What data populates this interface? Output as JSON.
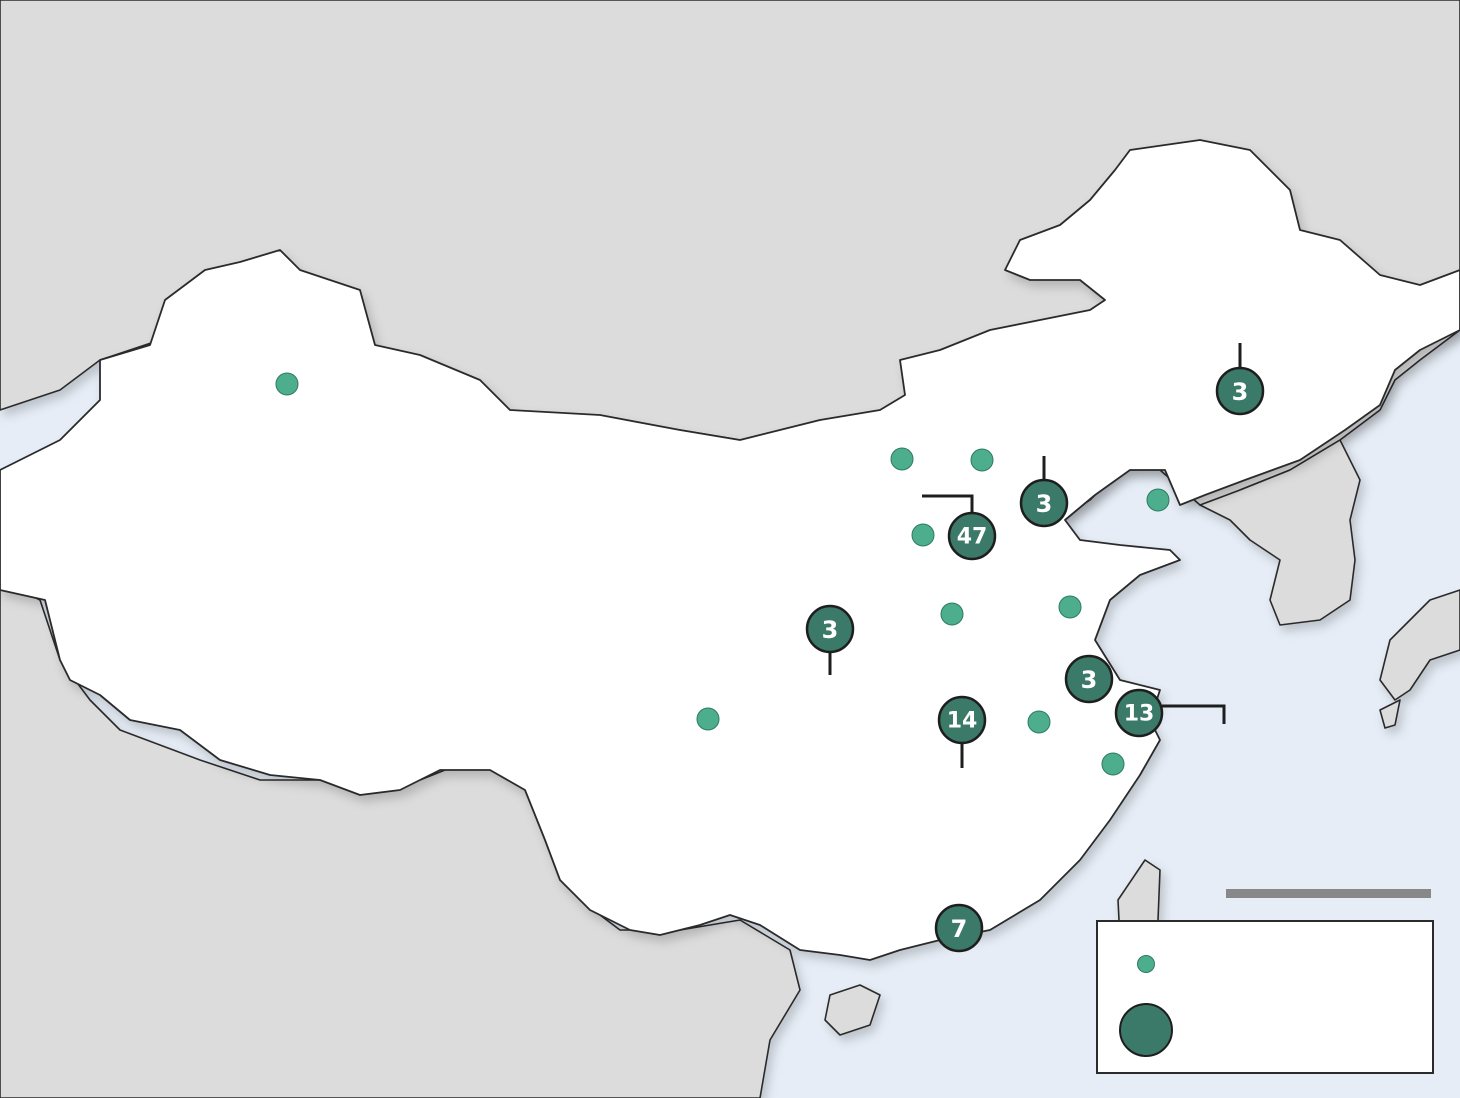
{
  "colors": {
    "water": "#e6edf6",
    "land_neighbors": "#dcdcdc",
    "land_focus": "#ffffff",
    "border": "#2b2b2b",
    "marker_small": "#4cae8c",
    "marker_large": "#3b7a68",
    "leader_line": "#1e1e1e",
    "scale_bar": "#888888"
  },
  "markers": {
    "count_markers": [
      {
        "id": "northeast",
        "count": "3",
        "leader": "up"
      },
      {
        "id": "tianjin",
        "count": "3",
        "leader": "up"
      },
      {
        "id": "beijing",
        "count": "47",
        "leader": "up-left"
      },
      {
        "id": "central-west",
        "count": "3",
        "leader": "down"
      },
      {
        "id": "nanjing",
        "count": "3",
        "leader": "none"
      },
      {
        "id": "shanghai",
        "count": "13",
        "leader": "right-down"
      },
      {
        "id": "wuhan",
        "count": "14",
        "leader": "down"
      },
      {
        "id": "guangzhou",
        "count": "7",
        "leader": "none"
      }
    ],
    "single_markers": [
      {
        "id": "urumqi"
      },
      {
        "id": "north-1"
      },
      {
        "id": "north-2"
      },
      {
        "id": "north-3"
      },
      {
        "id": "dalian"
      },
      {
        "id": "central"
      },
      {
        "id": "qingdao"
      },
      {
        "id": "chengdu"
      },
      {
        "id": "hefei"
      },
      {
        "id": "hangzhou"
      }
    ]
  },
  "legend": {
    "small_marker_icon": "small-circle",
    "large_marker_icon": "large-circle",
    "small_label": "",
    "large_label": ""
  },
  "scale_bar": {
    "label": ""
  }
}
